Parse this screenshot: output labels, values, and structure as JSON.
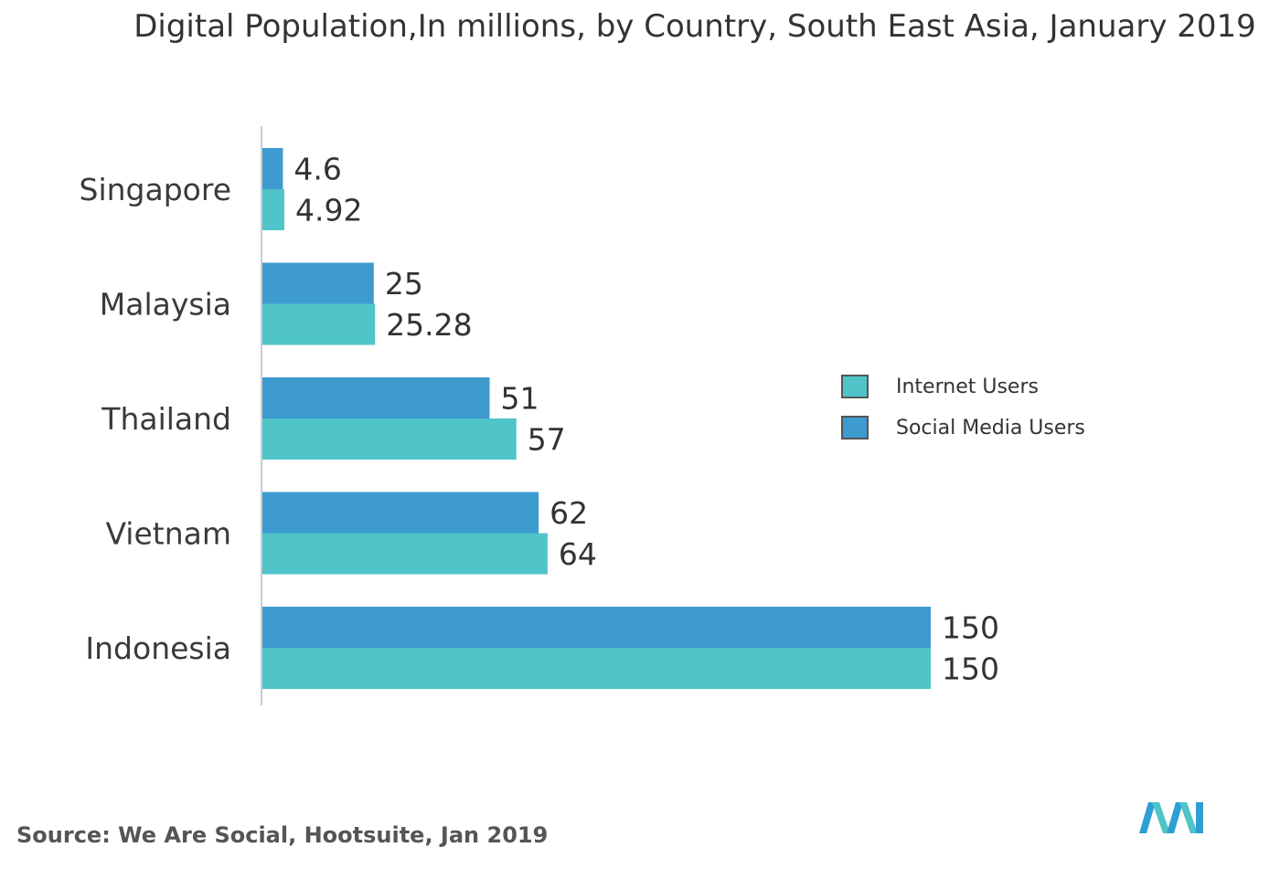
{
  "chart_data": {
    "type": "bar",
    "orientation": "horizontal",
    "title": "Digital Population,In millions, by Country, South East Asia, January 2019",
    "categories": [
      "Singapore",
      "Malaysia",
      "Thailand",
      "Vietnam",
      "Indonesia"
    ],
    "series": [
      {
        "name": "Social Media Users",
        "values": [
          4.6,
          25,
          51,
          62,
          150
        ],
        "labels": [
          "4.6",
          "25",
          "51",
          "62",
          "150"
        ],
        "color": "#3d9bd0"
      },
      {
        "name": "Internet Users",
        "values": [
          4.92,
          25.28,
          57,
          64,
          150
        ],
        "labels": [
          "4.92",
          "25.28",
          "57",
          "64",
          "150"
        ],
        "color": "#4fc4c9"
      }
    ],
    "xlim": [
      0,
      150
    ],
    "legend": {
      "position": "right",
      "order": [
        "Internet Users",
        "Social Media Users"
      ]
    },
    "grid": false
  },
  "source": "Source: We Are Social, Hootsuite, Jan 2019",
  "logo": "mordor-intelligence-logo"
}
